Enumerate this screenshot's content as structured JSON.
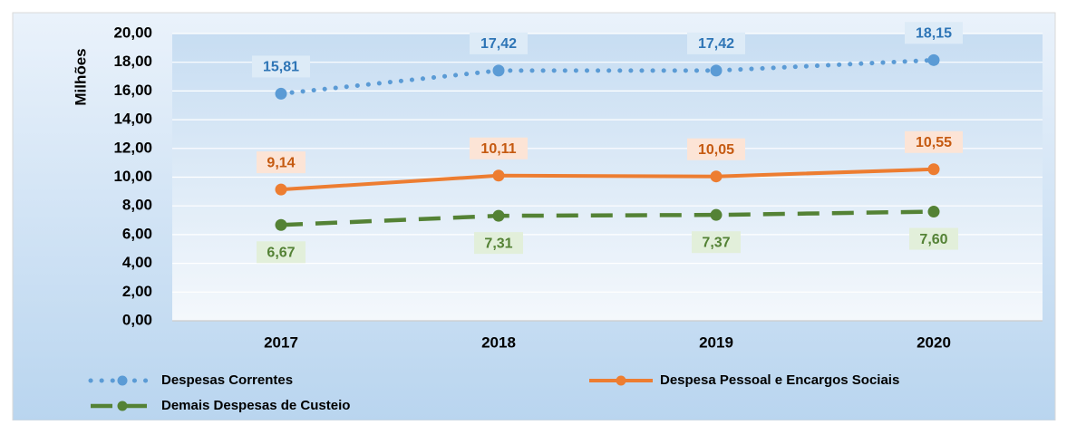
{
  "chart_data": {
    "type": "line",
    "y_label": "Milhões",
    "categories": [
      "2017",
      "2018",
      "2019",
      "2020"
    ],
    "series": [
      {
        "name": "Despesas Correntes",
        "color": "#5b9bd5",
        "style": "dotted",
        "label_position": "above",
        "values": [
          15.81,
          17.42,
          17.42,
          18.15
        ],
        "value_labels": [
          "15,81",
          "17,42",
          "17,42",
          "18,15"
        ]
      },
      {
        "name": "Despesa Pessoal e Encargos Sociais",
        "color": "#ed7d31",
        "style": "solid",
        "label_position": "above",
        "values": [
          9.14,
          10.11,
          10.05,
          10.55
        ],
        "value_labels": [
          "9,14",
          "10,11",
          "10,05",
          "10,55"
        ]
      },
      {
        "name": "Demais Despesas de Custeio",
        "color": "#548235",
        "style": "dashed",
        "label_position": "below",
        "values": [
          6.67,
          7.31,
          7.37,
          7.6
        ],
        "value_labels": [
          "6,67",
          "7,31",
          "7,37",
          "7,60"
        ]
      }
    ],
    "ylim": [
      0,
      20
    ],
    "yticks": [
      {
        "value": 0,
        "label": "0,00"
      },
      {
        "value": 2,
        "label": "2,00"
      },
      {
        "value": 4,
        "label": "4,00"
      },
      {
        "value": 6,
        "label": "6,00"
      },
      {
        "value": 8,
        "label": "8,00"
      },
      {
        "value": 10,
        "label": "10,00"
      },
      {
        "value": 12,
        "label": "12,00"
      },
      {
        "value": 14,
        "label": "14,00"
      },
      {
        "value": 16,
        "label": "16,00"
      },
      {
        "value": 18,
        "label": "18,00"
      },
      {
        "value": 20,
        "label": "20,00"
      }
    ],
    "grid": true,
    "legend": "bottom"
  }
}
